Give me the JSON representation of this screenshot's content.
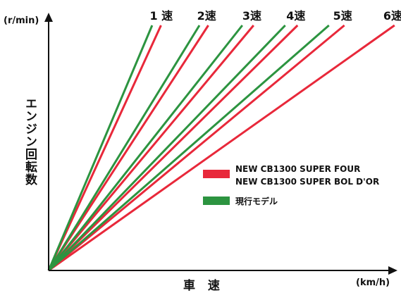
{
  "chart_data": {
    "type": "line",
    "title": "",
    "xlabel": "車 速",
    "xunit": "(km/h)",
    "ylabel": "エンジン回転数",
    "yunit": "(r/min)",
    "grid": false,
    "legend_position": "right",
    "series": [
      {
        "name": "NEW CB1300 SUPER FOUR\nNEW CB1300 SUPER BOL D'OR",
        "color": "#e8283a",
        "gears": [
          {
            "gear": "1 速",
            "slope": 2.632
          },
          {
            "gear": "2速",
            "slope": 1.852
          },
          {
            "gear": "3速",
            "slope": 1.443
          },
          {
            "gear": "4速",
            "slope": 1.188
          },
          {
            "gear": "5速",
            "slope": 1.0
          },
          {
            "gear": "6速",
            "slope": 0.855
          }
        ]
      },
      {
        "name": "現行モデル",
        "color": "#2c9440",
        "gears": [
          {
            "gear": "1 速",
            "slope": 2.857
          },
          {
            "gear": "2速",
            "slope": 1.961
          },
          {
            "gear": "3速",
            "slope": 1.527
          },
          {
            "gear": "4速",
            "slope": 1.25
          },
          {
            "gear": "5速",
            "slope": 1.055
          }
        ]
      }
    ]
  }
}
